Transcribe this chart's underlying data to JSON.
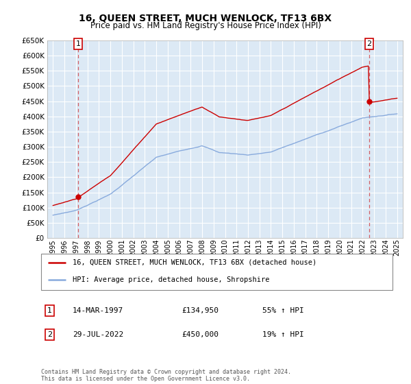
{
  "title": "16, QUEEN STREET, MUCH WENLOCK, TF13 6BX",
  "subtitle": "Price paid vs. HM Land Registry's House Price Index (HPI)",
  "ylim": [
    0,
    650000
  ],
  "yticks": [
    0,
    50000,
    100000,
    150000,
    200000,
    250000,
    300000,
    350000,
    400000,
    450000,
    500000,
    550000,
    600000,
    650000
  ],
  "xlim_start": 1994.5,
  "xlim_end": 2025.5,
  "plot_bg": "#dce9f5",
  "fig_bg": "#ffffff",
  "grid_color": "#ffffff",
  "red_line_color": "#cc0000",
  "blue_line_color": "#88aadd",
  "sale1_x": 1997.2,
  "sale1_y": 134950,
  "sale2_x": 2022.57,
  "sale2_y": 450000,
  "legend_line1": "16, QUEEN STREET, MUCH WENLOCK, TF13 6BX (detached house)",
  "legend_line2": "HPI: Average price, detached house, Shropshire",
  "annotation1_label": "1",
  "annotation1_date": "14-MAR-1997",
  "annotation1_price": "£134,950",
  "annotation1_hpi": "55% ↑ HPI",
  "annotation2_label": "2",
  "annotation2_date": "29-JUL-2022",
  "annotation2_price": "£450,000",
  "annotation2_hpi": "19% ↑ HPI",
  "footer": "Contains HM Land Registry data © Crown copyright and database right 2024.\nThis data is licensed under the Open Government Licence v3.0."
}
